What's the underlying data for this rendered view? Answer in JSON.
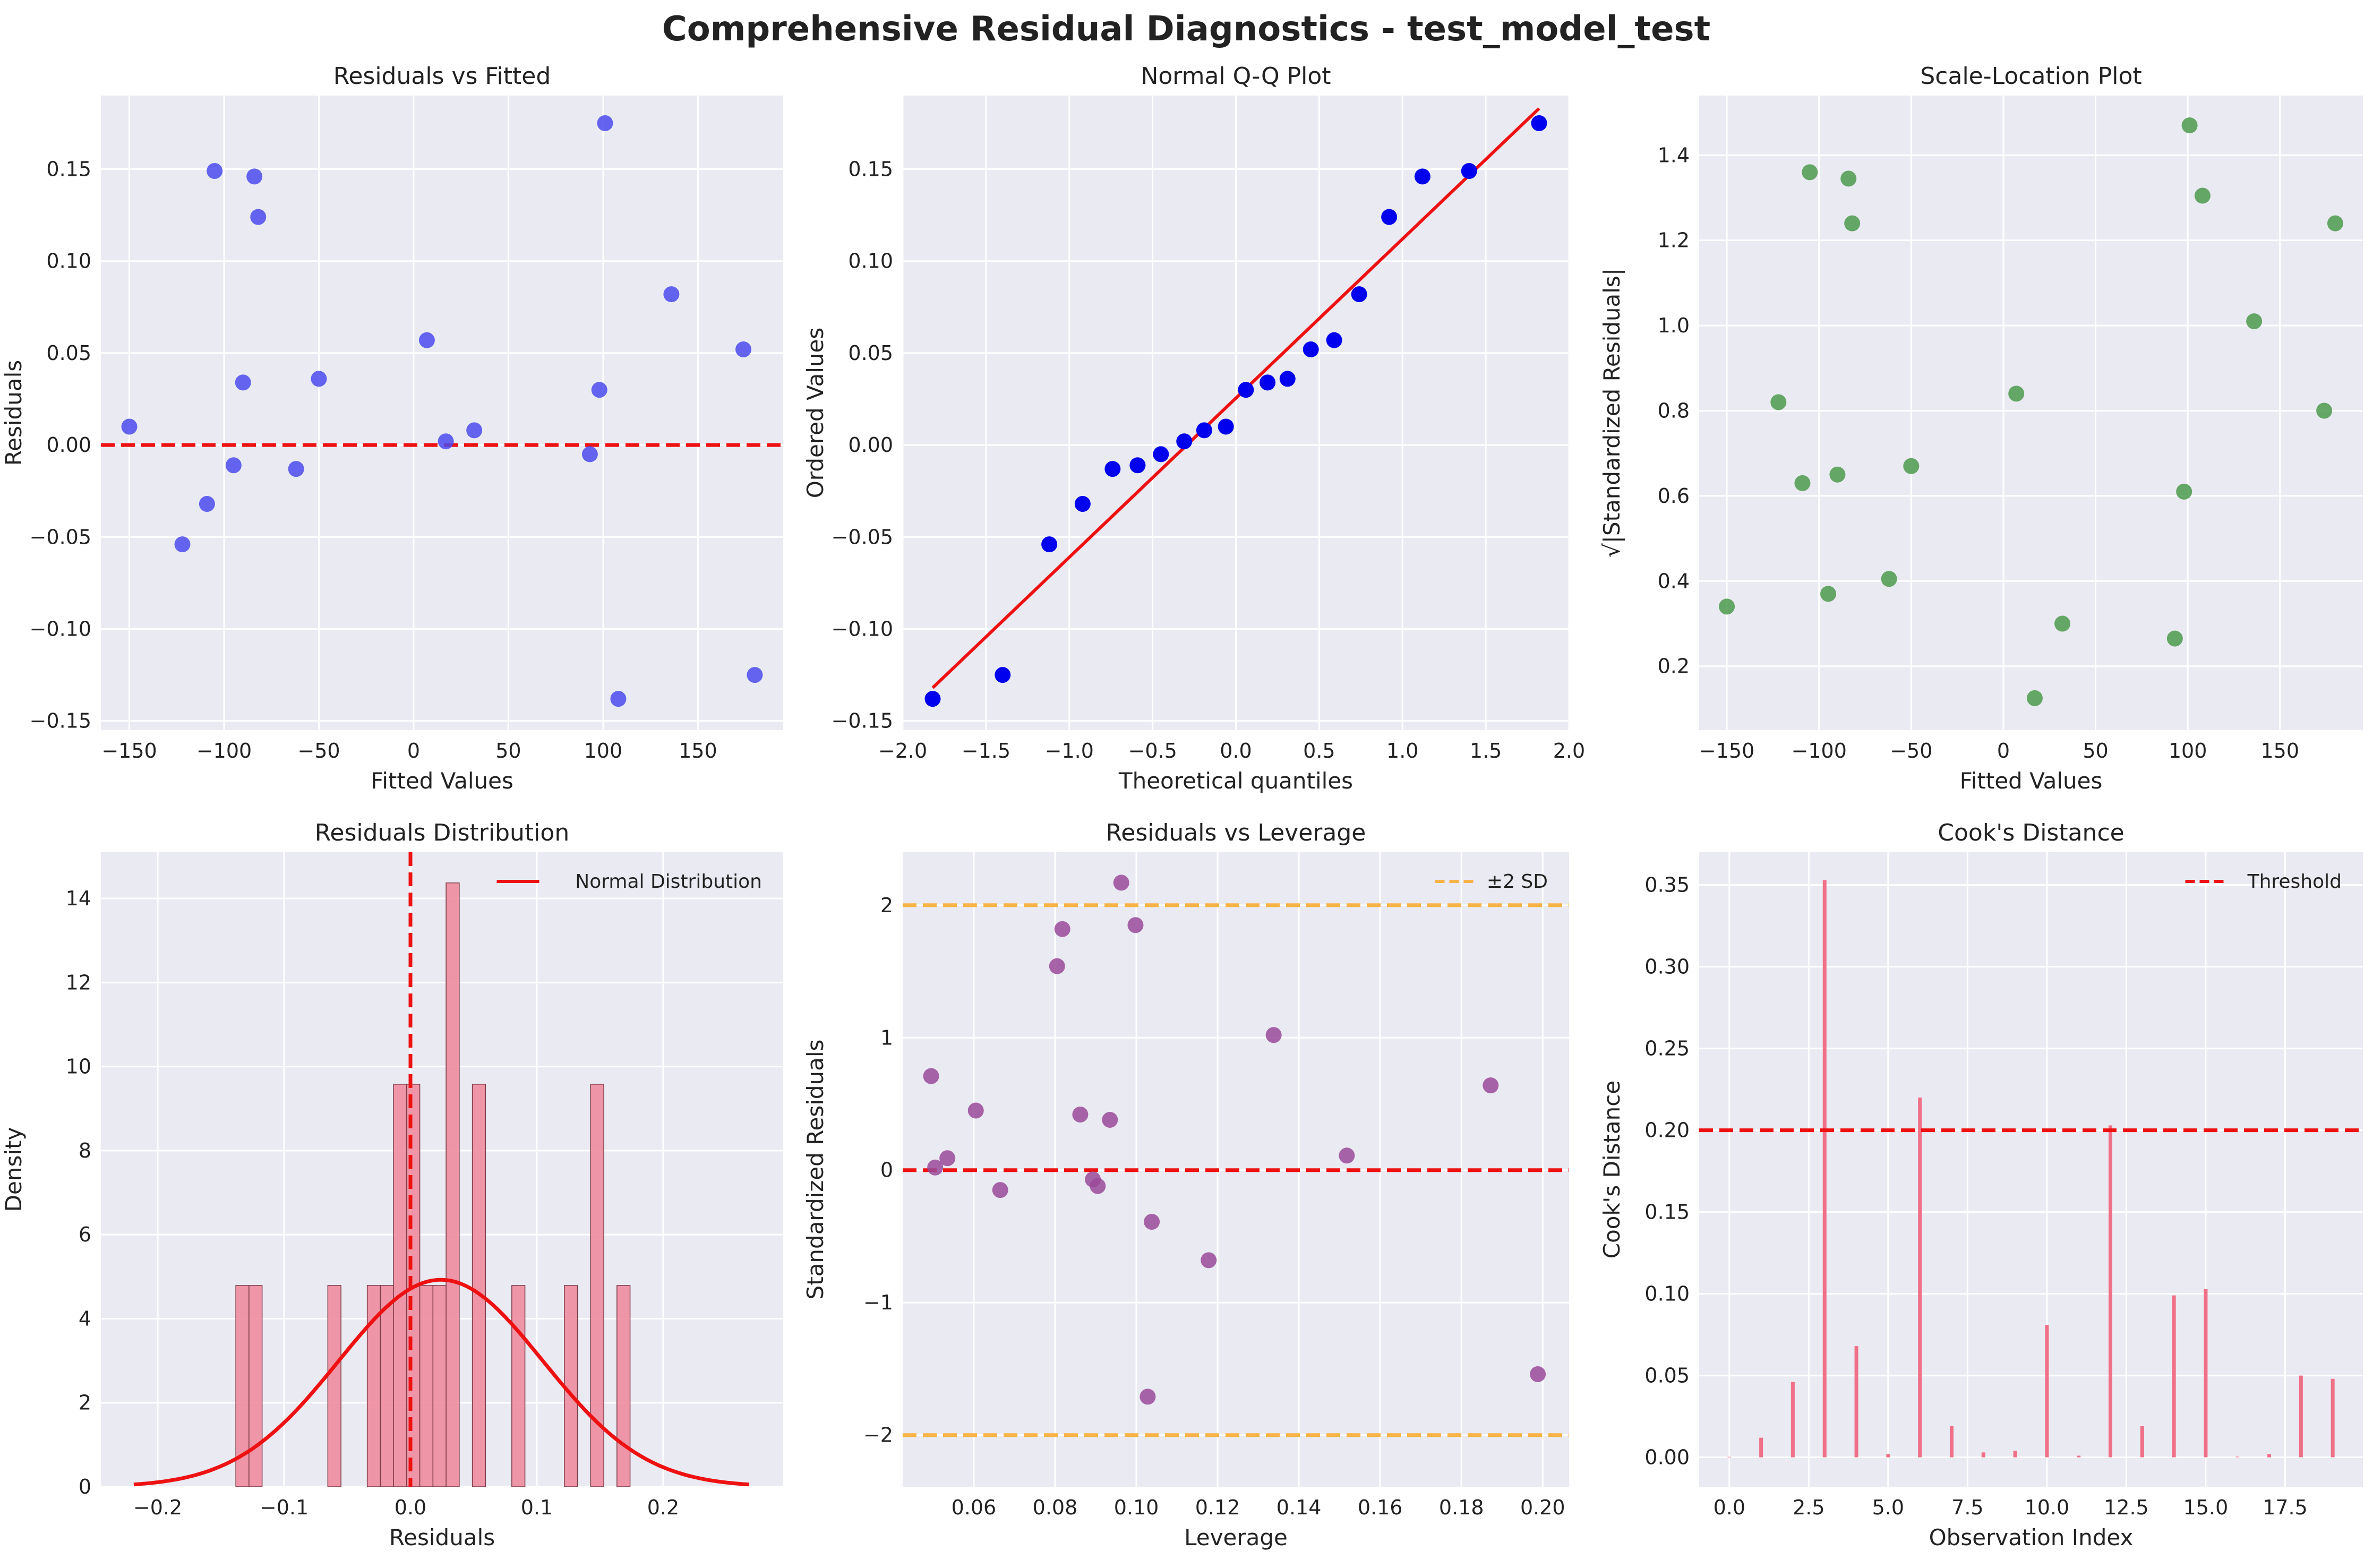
{
  "figure": {
    "title": "Comprehensive Residual Diagnostics - test_model_test"
  },
  "chart_data": [
    {
      "id": "resid_fitted",
      "type": "scatter",
      "title": "Residuals vs Fitted",
      "xlabel": "Fitted Values",
      "ylabel": "Residuals",
      "xlim": [
        -165,
        195
      ],
      "ylim": [
        -0.155,
        0.19
      ],
      "xticks": [
        -150,
        -100,
        -50,
        0,
        50,
        100,
        150
      ],
      "yticks": [
        -0.15,
        -0.1,
        -0.05,
        0.0,
        0.05,
        0.1,
        0.15
      ],
      "ytick_decimals": 2,
      "grid": true,
      "color": "#4b4bf0",
      "hline": {
        "y": 0,
        "color": "#ee1111",
        "dash": true
      },
      "points": [
        [
          -150,
          0.01
        ],
        [
          -122,
          -0.054
        ],
        [
          -109,
          -0.032
        ],
        [
          -105,
          0.149
        ],
        [
          -95,
          -0.011
        ],
        [
          -90,
          0.034
        ],
        [
          -84,
          0.146
        ],
        [
          -82,
          0.124
        ],
        [
          -62,
          -0.013
        ],
        [
          -50,
          0.036
        ],
        [
          7,
          0.057
        ],
        [
          17,
          0.002
        ],
        [
          32,
          0.008
        ],
        [
          93,
          -0.005
        ],
        [
          98,
          0.03
        ],
        [
          101,
          0.175
        ],
        [
          108,
          -0.138
        ],
        [
          136,
          0.082
        ],
        [
          174,
          0.052
        ],
        [
          180,
          -0.125
        ]
      ]
    },
    {
      "id": "qq",
      "type": "scatter",
      "title": "Normal Q-Q Plot",
      "xlabel": "Theoretical quantiles",
      "ylabel": "Ordered Values",
      "xlim": [
        -2.0,
        2.0
      ],
      "ylim": [
        -0.155,
        0.19
      ],
      "xticks": [
        -2.0,
        -1.5,
        -1.0,
        -0.5,
        0.0,
        0.5,
        1.0,
        1.5,
        2.0
      ],
      "xtick_decimals": 1,
      "yticks": [
        -0.15,
        -0.1,
        -0.05,
        0.0,
        0.05,
        0.1,
        0.15
      ],
      "ytick_decimals": 2,
      "grid": true,
      "color": "#0000ee",
      "line": {
        "points": [
          [
            -1.82,
            -0.132
          ],
          [
            1.82,
            0.183
          ]
        ],
        "color": "#ee1111"
      },
      "points": [
        [
          -1.82,
          -0.138
        ],
        [
          -1.4,
          -0.125
        ],
        [
          -1.12,
          -0.054
        ],
        [
          -0.92,
          -0.032
        ],
        [
          -0.74,
          -0.013
        ],
        [
          -0.59,
          -0.011
        ],
        [
          -0.45,
          -0.005
        ],
        [
          -0.31,
          0.002
        ],
        [
          -0.19,
          0.008
        ],
        [
          -0.06,
          0.01
        ],
        [
          0.06,
          0.03
        ],
        [
          0.19,
          0.034
        ],
        [
          0.31,
          0.036
        ],
        [
          0.45,
          0.052
        ],
        [
          0.59,
          0.057
        ],
        [
          0.74,
          0.082
        ],
        [
          0.92,
          0.124
        ],
        [
          1.12,
          0.146
        ],
        [
          1.4,
          0.149
        ],
        [
          1.82,
          0.175
        ]
      ]
    },
    {
      "id": "scale_loc",
      "type": "scatter",
      "title": "Scale-Location Plot",
      "xlabel": "Fitted Values",
      "ylabel": "√|Standardized Residuals|",
      "xlim": [
        -165,
        195
      ],
      "ylim": [
        0.05,
        1.54
      ],
      "xticks": [
        -150,
        -100,
        -50,
        0,
        50,
        100,
        150
      ],
      "yticks": [
        0.2,
        0.4,
        0.6,
        0.8,
        1.0,
        1.2,
        1.4
      ],
      "ytick_decimals": 1,
      "grid": true,
      "color": "#4c9a4c",
      "points": [
        [
          -150,
          0.34
        ],
        [
          -122,
          0.82
        ],
        [
          -109,
          0.63
        ],
        [
          -105,
          1.36
        ],
        [
          -95,
          0.37
        ],
        [
          -90,
          0.65
        ],
        [
          -84,
          1.345
        ],
        [
          -82,
          1.24
        ],
        [
          -62,
          0.405
        ],
        [
          -50,
          0.67
        ],
        [
          7,
          0.84
        ],
        [
          17,
          0.125
        ],
        [
          32,
          0.3
        ],
        [
          93,
          0.265
        ],
        [
          98,
          0.61
        ],
        [
          101,
          1.47
        ],
        [
          108,
          1.305
        ],
        [
          136,
          1.01
        ],
        [
          174,
          0.8
        ],
        [
          180,
          1.24
        ]
      ]
    },
    {
      "id": "resid_dist",
      "type": "bar",
      "title": "Residuals Distribution",
      "xlabel": "Residuals",
      "ylabel": "Density",
      "xlim": [
        -0.245,
        0.295
      ],
      "ylim": [
        0,
        15.1
      ],
      "xticks": [
        -0.2,
        -0.1,
        0.0,
        0.1,
        0.2
      ],
      "xtick_decimals": 1,
      "yticks": [
        0,
        2,
        4,
        6,
        8,
        10,
        12,
        14
      ],
      "ytick_decimals": 0,
      "grid": true,
      "color": "#f08ca0",
      "legend": {
        "label": "Normal Distribution",
        "location": "top-right"
      },
      "bin_width": 0.0104,
      "bins": [
        [
          -0.1382,
          4.79
        ],
        [
          -0.1278,
          4.79
        ],
        [
          -0.0654,
          4.79
        ],
        [
          -0.0342,
          4.79
        ],
        [
          -0.0238,
          4.79
        ],
        [
          -0.0134,
          9.58
        ],
        [
          -0.003,
          9.58
        ],
        [
          0.0074,
          4.79
        ],
        [
          0.0178,
          4.79
        ],
        [
          0.0282,
          14.37
        ],
        [
          0.049,
          9.58
        ],
        [
          0.0802,
          4.79
        ],
        [
          0.1218,
          4.79
        ],
        [
          0.1426,
          9.58
        ],
        [
          0.1634,
          4.79
        ]
      ],
      "vline": {
        "x": 0,
        "color": "#ee1111",
        "dash": true
      },
      "normal_curve": {
        "mean": 0.024,
        "sd": 0.081,
        "x_range": [
          -0.219,
          0.268
        ],
        "color": "#ee1111"
      }
    },
    {
      "id": "resid_leverage",
      "type": "scatter",
      "title": "Residuals vs Leverage",
      "xlabel": "Leverage",
      "ylabel": "Standardized Residuals",
      "xlim": [
        0.0425,
        0.2065
      ],
      "ylim": [
        -2.39,
        2.4
      ],
      "xticks": [
        0.06,
        0.08,
        0.1,
        0.12,
        0.14,
        0.16,
        0.18,
        0.2
      ],
      "xtick_decimals": 2,
      "yticks": [
        -2,
        -1,
        0,
        1,
        2
      ],
      "ytick_decimals": 0,
      "ytick_minus": true,
      "grid": true,
      "color": "#9a4a9a",
      "legend": {
        "label": "±2 SD",
        "location": "top-right"
      },
      "hlines": [
        {
          "y": 2,
          "color": "#f7b346",
          "dash": true
        },
        {
          "y": -2,
          "color": "#f7b346",
          "dash": true
        },
        {
          "y": 0,
          "color": "#ee1111",
          "dash": true
        }
      ],
      "points": [
        [
          0.0495,
          0.71
        ],
        [
          0.0505,
          0.02
        ],
        [
          0.0535,
          0.09
        ],
        [
          0.0605,
          0.45
        ],
        [
          0.0665,
          -0.15
        ],
        [
          0.0805,
          1.54
        ],
        [
          0.0818,
          1.82
        ],
        [
          0.0862,
          0.42
        ],
        [
          0.0893,
          -0.07
        ],
        [
          0.0905,
          -0.12
        ],
        [
          0.0935,
          0.38
        ],
        [
          0.0963,
          2.17
        ],
        [
          0.0998,
          1.85
        ],
        [
          0.1028,
          -1.71
        ],
        [
          0.1038,
          -0.39
        ],
        [
          0.1178,
          -0.68
        ],
        [
          0.1338,
          1.02
        ],
        [
          0.1518,
          0.11
        ],
        [
          0.1872,
          0.64
        ],
        [
          0.1988,
          -1.54
        ]
      ]
    },
    {
      "id": "cooks",
      "type": "bar",
      "title": "Cook's Distance",
      "xlabel": "Observation Index",
      "ylabel": "Cook's Distance",
      "xlim": [
        -0.95,
        19.95
      ],
      "ylim": [
        -0.018,
        0.37
      ],
      "xticks": [
        0.0,
        2.5,
        5.0,
        7.5,
        10.0,
        12.5,
        15.0,
        17.5
      ],
      "xtick_decimals": 1,
      "yticks": [
        0.0,
        0.05,
        0.1,
        0.15,
        0.2,
        0.25,
        0.3,
        0.35
      ],
      "ytick_decimals": 2,
      "grid": true,
      "color": "#f07088",
      "legend": {
        "label": "Threshold",
        "location": "top-right"
      },
      "hline": {
        "y": 0.2,
        "color": "#ee1111",
        "dash": true,
        "full": true
      },
      "categories": [
        0,
        1,
        2,
        3,
        4,
        5,
        6,
        7,
        8,
        9,
        10,
        11,
        12,
        13,
        14,
        15,
        16,
        17,
        18,
        19
      ],
      "values": [
        0.0003,
        0.012,
        0.046,
        0.353,
        0.068,
        0.002,
        0.22,
        0.019,
        0.003,
        0.004,
        0.081,
        0.001,
        0.203,
        0.019,
        0.099,
        0.103,
        0.0004,
        0.002,
        0.05,
        0.048
      ]
    }
  ]
}
